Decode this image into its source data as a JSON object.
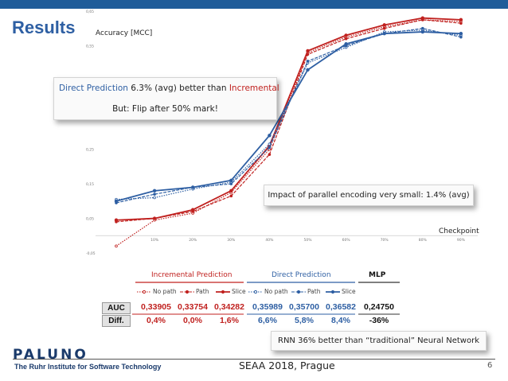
{
  "slide": {
    "title": "Results",
    "footer": "SEAA 2018, Prague",
    "page": "6"
  },
  "logo": {
    "name": "PALUNO",
    "tagline": "The Ruhr Institute for Software Technology"
  },
  "colors": {
    "topbar": "#1f5c99",
    "title": "#2e5fa3",
    "incremental": "#c0211f",
    "direct": "#2e5fa3"
  },
  "chart_data": {
    "type": "line",
    "ylabel": "Accuracy [MCC]",
    "xlabel": "Checkpoint",
    "categories": [
      "",
      "10%",
      "20%",
      "30%",
      "40%",
      "50%",
      "60%",
      "70%",
      "80%",
      "90%"
    ],
    "y_ticks": [
      "-0,05",
      "0,05",
      "0,15",
      "0,25",
      "0,35",
      "0,45",
      "0,55",
      "0,65"
    ],
    "ylim": [
      -0.05,
      0.65
    ],
    "grid": false,
    "series": [
      {
        "name": "No path",
        "group": "incremental",
        "values": [
          -0.03,
          0.045,
          0.065,
          0.125,
          0.25,
          0.53,
          0.575,
          0.605,
          0.625,
          0.62
        ]
      },
      {
        "name": "Path",
        "group": "incremental",
        "values": [
          0.04,
          0.05,
          0.07,
          0.115,
          0.235,
          0.525,
          0.57,
          0.6,
          0.625,
          0.615
        ]
      },
      {
        "name": "Slice",
        "group": "incremental",
        "values": [
          0.045,
          0.05,
          0.075,
          0.13,
          0.26,
          0.535,
          0.58,
          0.61,
          0.63,
          0.625
        ]
      },
      {
        "name": "No path",
        "group": "direct",
        "values": [
          0.105,
          0.11,
          0.135,
          0.155,
          0.265,
          0.5,
          0.545,
          0.59,
          0.595,
          0.58
        ]
      },
      {
        "name": "Path",
        "group": "direct",
        "values": [
          0.095,
          0.12,
          0.14,
          0.15,
          0.255,
          0.505,
          0.55,
          0.585,
          0.6,
          0.575
        ]
      },
      {
        "name": "Slice",
        "group": "direct",
        "values": [
          0.1,
          0.13,
          0.14,
          0.16,
          0.29,
          0.48,
          0.555,
          0.585,
          0.59,
          0.585
        ]
      }
    ]
  },
  "callouts": {
    "main_line1_a": "Direct Prediction",
    "main_line1_b": " 6.3% (avg) better than ",
    "main_line1_c": "Incremental",
    "main_line2": "But: Flip after 50% mark!",
    "parallel": "Impact of parallel encoding very small: 1.4% (avg)",
    "rnn": "RNN 36% better than “traditional” Neural Network"
  },
  "table": {
    "headers": {
      "incremental": "Incremental Prediction",
      "direct": "Direct Prediction",
      "mlp": "MLP"
    },
    "legend": [
      "No path",
      "Path",
      "Slice",
      "No path",
      "Path",
      "Slice"
    ],
    "auc_label": "AUC",
    "diff_label": "Diff.",
    "auc": [
      "0,33905",
      "0,33754",
      "0,34282",
      "0,35989",
      "0,35700",
      "0,36582",
      "0,24750"
    ],
    "diff": [
      "0,4%",
      "0,0%",
      "1,6%",
      "6,6%",
      "5,8%",
      "8,4%",
      "-36%"
    ]
  }
}
